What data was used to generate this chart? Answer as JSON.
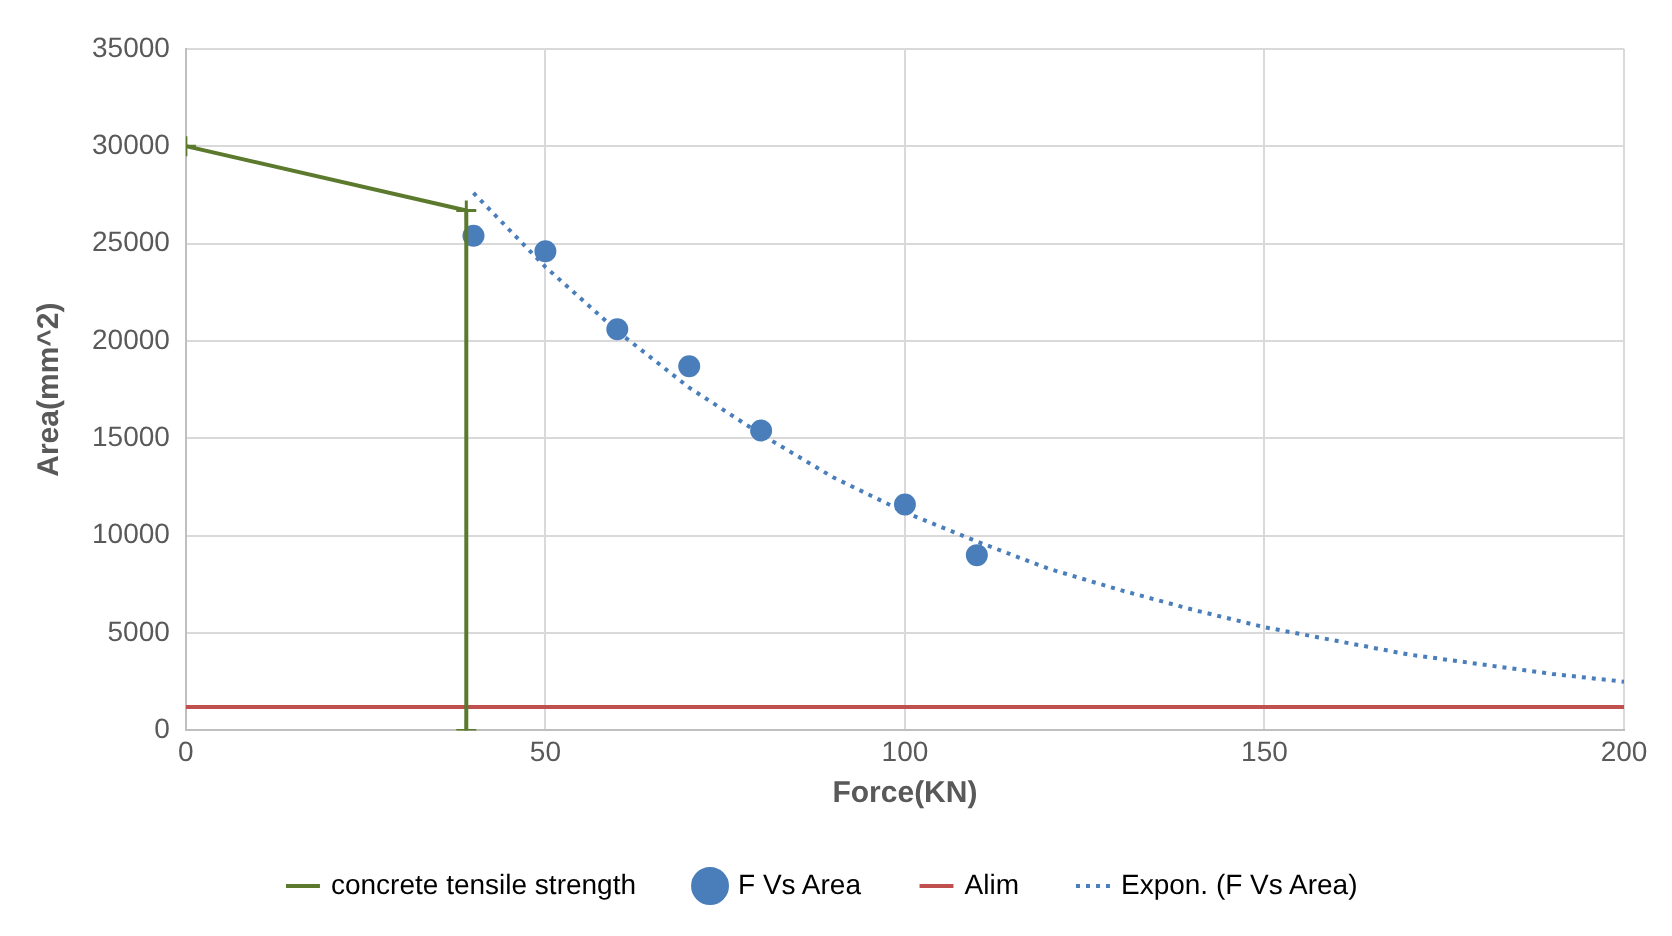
{
  "chart_data": {
    "type": "scatter",
    "xlabel": "Force(KN)",
    "ylabel": "Area(mm^2)",
    "xlim": [
      0,
      200
    ],
    "xticks": [
      0,
      50,
      100,
      150,
      200
    ],
    "ylim": [
      0,
      35000
    ],
    "yticks": [
      0,
      5000,
      10000,
      15000,
      20000,
      25000,
      30000,
      35000
    ],
    "grid": true,
    "legend": "bottom",
    "series": [
      {
        "name": "concrete tensile strength",
        "type": "line",
        "color": "#5b7a2e",
        "marker": "cross",
        "x": [
          0,
          39,
          39
        ],
        "values": [
          30000,
          26700,
          0
        ]
      },
      {
        "name": "F Vs Area",
        "type": "scatter",
        "color": "#4a7ebb",
        "marker": "circle",
        "x": [
          40,
          50,
          60,
          70,
          80,
          100,
          110
        ],
        "values": [
          25400,
          24600,
          20600,
          18700,
          15400,
          11600,
          9000
        ]
      },
      {
        "name": "Alim",
        "type": "line",
        "color": "#c0504d",
        "marker": "none",
        "x": [
          0,
          200
        ],
        "values": [
          1200,
          1200
        ]
      },
      {
        "name": "Expon. (F Vs Area)",
        "type": "line",
        "color": "#4a7ebb",
        "marker": "none",
        "line_style": "dotted",
        "x": [
          40,
          50,
          60,
          70,
          80,
          90,
          100,
          110,
          120,
          130,
          140,
          150,
          160,
          170,
          180,
          190,
          200
        ],
        "values": [
          27600,
          23800,
          20500,
          17600,
          15200,
          13000,
          11200,
          9700,
          8300,
          7200,
          6200,
          5300,
          4600,
          3900,
          3400,
          2900,
          2500
        ]
      }
    ]
  }
}
